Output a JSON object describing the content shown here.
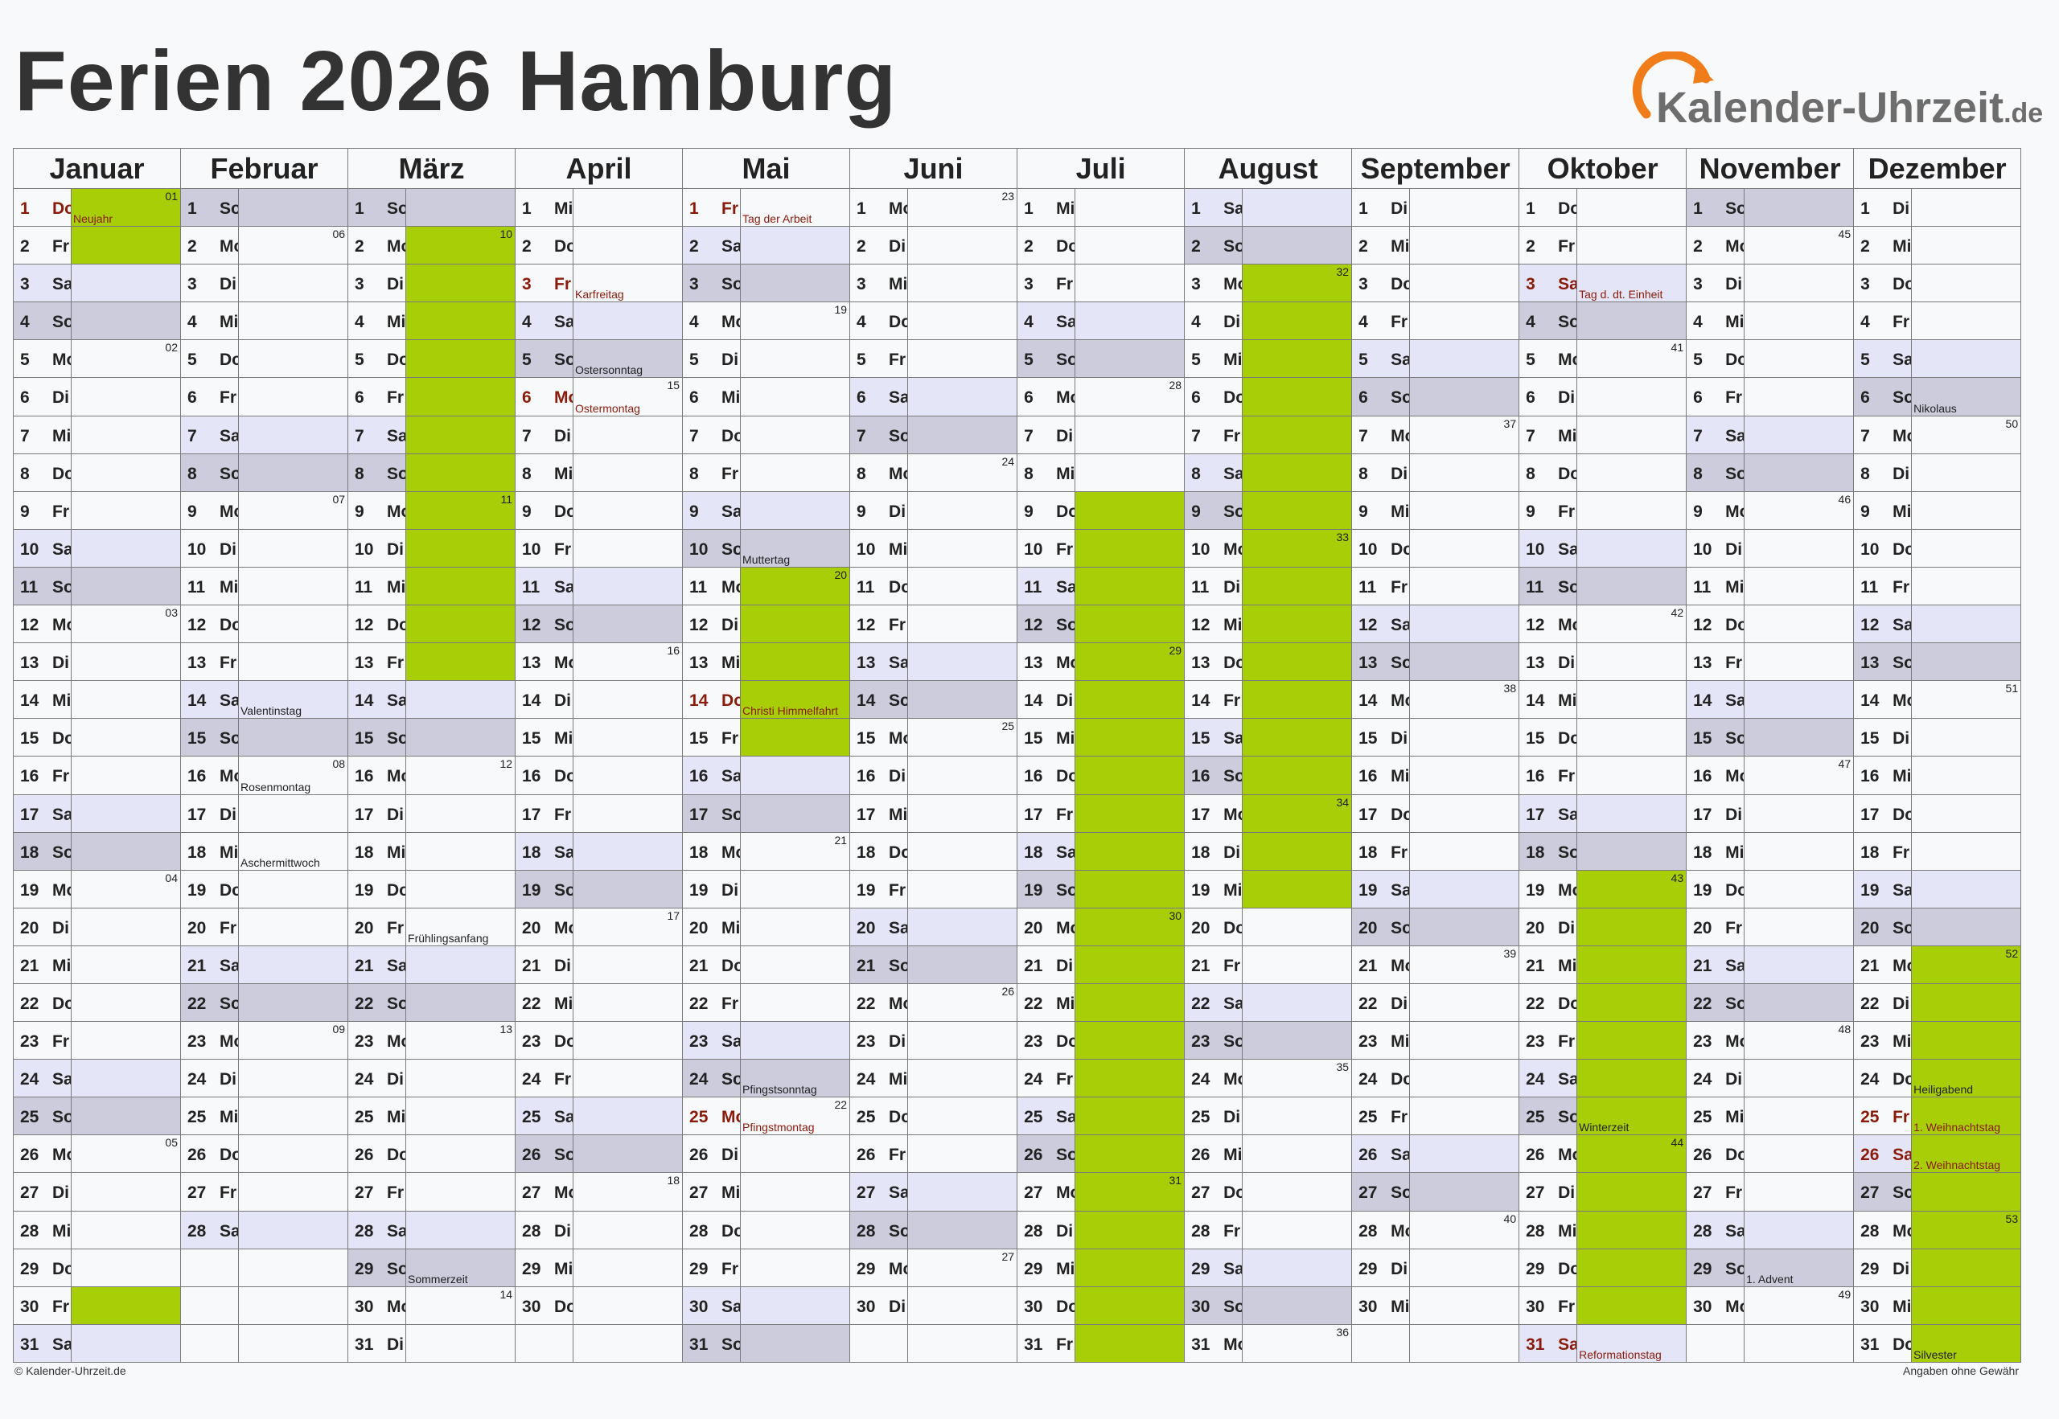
{
  "title": "Ferien 2026 Hamburg",
  "logo": {
    "text": "Kalender-Uhrzeit",
    "suffix": ".de"
  },
  "footer": {
    "copyright": "© Kalender-Uhrzeit.de",
    "disclaimer": "Angaben ohne Gewähr"
  },
  "colors": {
    "saturday": "#e4e5f6",
    "sunday": "#ccccdc",
    "holiday_period": "#a8ce08",
    "public_holiday_text": "#8a1a0a",
    "logo_orange": "#f07d1a",
    "logo_gray": "#6d6d6d"
  },
  "months": [
    {
      "name": "Januar",
      "days": 31,
      "startDow": 3,
      "ferien": [
        [
          1,
          2
        ],
        [
          30,
          30
        ]
      ],
      "holidays": {
        "1": "Neujahr"
      },
      "notes": {},
      "kw": {
        "1": "01",
        "5": "02",
        "12": "03",
        "19": "04",
        "26": "05"
      }
    },
    {
      "name": "Februar",
      "days": 28,
      "startDow": 6,
      "ferien": [],
      "holidays": {},
      "notes": {
        "14": "Valentinstag",
        "16": "Rosenmontag",
        "18": "Aschermittwoch"
      },
      "kw": {
        "2": "06",
        "9": "07",
        "16": "08",
        "23": "09"
      }
    },
    {
      "name": "März",
      "days": 31,
      "startDow": 6,
      "ferien": [
        [
          2,
          13
        ]
      ],
      "holidays": {},
      "notes": {
        "20": "Frühlingsanfang",
        "29": "Sommerzeit"
      },
      "kw": {
        "2": "10",
        "9": "11",
        "16": "12",
        "23": "13",
        "30": "14"
      }
    },
    {
      "name": "April",
      "days": 30,
      "startDow": 2,
      "ferien": [],
      "holidays": {
        "3": "Karfreitag",
        "6": "Ostermontag"
      },
      "notes": {
        "5": "Ostersonntag"
      },
      "kw": {
        "6": "15",
        "13": "16",
        "20": "17",
        "27": "18"
      }
    },
    {
      "name": "Mai",
      "days": 31,
      "startDow": 4,
      "ferien": [
        [
          11,
          15
        ]
      ],
      "holidays": {
        "1": "Tag der Arbeit",
        "14": "Christi Himmelfahrt",
        "25": "Pfingstmontag"
      },
      "notes": {
        "10": "Muttertag",
        "24": "Pfingstsonntag"
      },
      "kw": {
        "4": "19",
        "11": "20",
        "18": "21",
        "25": "22"
      }
    },
    {
      "name": "Juni",
      "days": 30,
      "startDow": 0,
      "ferien": [],
      "holidays": {},
      "notes": {},
      "kw": {
        "1": "23",
        "8": "24",
        "15": "25",
        "22": "26",
        "29": "27"
      }
    },
    {
      "name": "Juli",
      "days": 31,
      "startDow": 2,
      "ferien": [
        [
          9,
          31
        ]
      ],
      "holidays": {},
      "notes": {},
      "kw": {
        "6": "28",
        "13": "29",
        "20": "30",
        "27": "31"
      }
    },
    {
      "name": "August",
      "days": 31,
      "startDow": 5,
      "ferien": [
        [
          3,
          19
        ]
      ],
      "holidays": {},
      "notes": {},
      "kw": {
        "3": "32",
        "10": "33",
        "17": "34",
        "24": "35",
        "31": "36"
      }
    },
    {
      "name": "September",
      "days": 30,
      "startDow": 1,
      "ferien": [],
      "holidays": {},
      "notes": {},
      "kw": {
        "7": "37",
        "14": "38",
        "21": "39",
        "28": "40"
      }
    },
    {
      "name": "Oktober",
      "days": 31,
      "startDow": 3,
      "ferien": [
        [
          19,
          30
        ]
      ],
      "holidays": {
        "3": "Tag d. dt. Einheit",
        "31": "Reformationstag"
      },
      "notes": {
        "25": "Winterzeit"
      },
      "kw": {
        "5": "41",
        "12": "42",
        "19": "43",
        "26": "44"
      }
    },
    {
      "name": "November",
      "days": 30,
      "startDow": 6,
      "ferien": [],
      "holidays": {},
      "notes": {
        "29": "1. Advent"
      },
      "kw": {
        "2": "45",
        "9": "46",
        "16": "47",
        "23": "48",
        "30": "49"
      }
    },
    {
      "name": "Dezember",
      "days": 31,
      "startDow": 1,
      "ferien": [
        [
          21,
          31
        ]
      ],
      "holidays": {
        "25": "1. Weihnachtstag",
        "26": "2. Weihnachtstag"
      },
      "notes": {
        "6": "Nikolaus",
        "24": "Heiligabend",
        "31": "Silvester"
      },
      "kw": {
        "7": "50",
        "14": "51",
        "21": "52",
        "28": "53"
      }
    }
  ],
  "weekdays": [
    "Mo",
    "Di",
    "Mi",
    "Do",
    "Fr",
    "Sa",
    "So"
  ]
}
